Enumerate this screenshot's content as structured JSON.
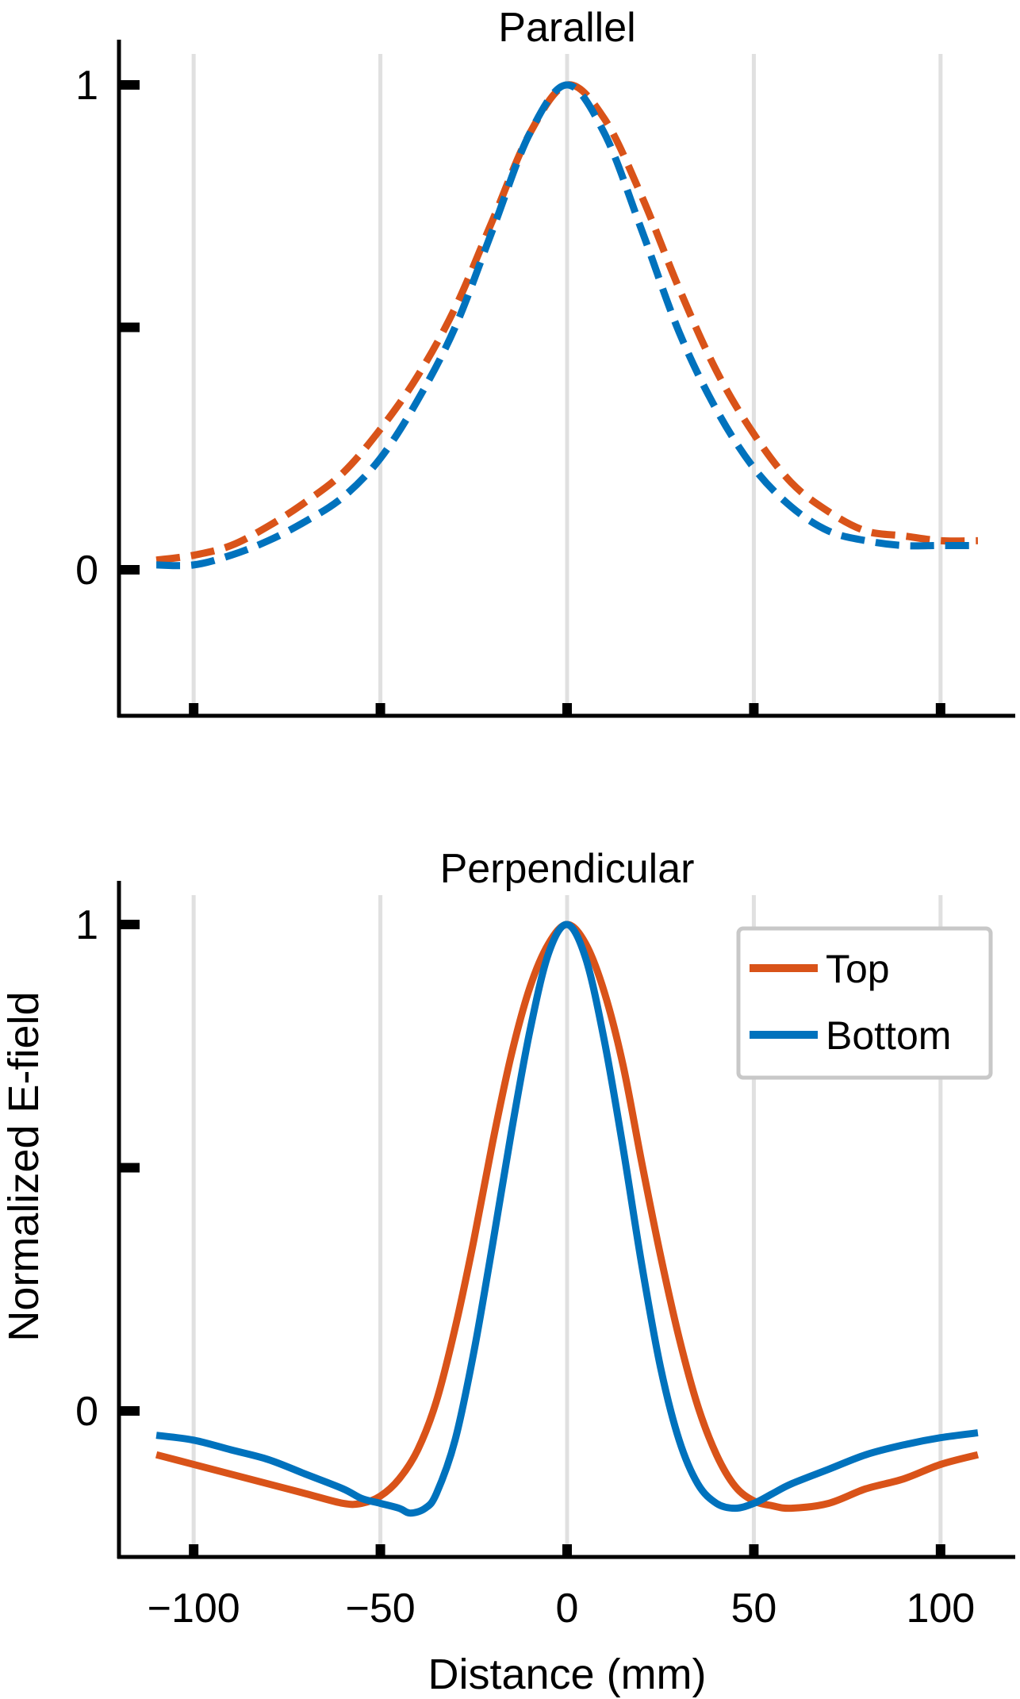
{
  "figure": {
    "ylabel": "Normalized E-field",
    "xlabel": "Distance (mm)",
    "colors": {
      "top": "#D95319",
      "bottom": "#0072BD",
      "grid": "#E0E0E0",
      "axis": "#000000"
    }
  },
  "chart_data": [
    {
      "type": "line",
      "title": "Parallel",
      "xlabel": "",
      "ylabel": "",
      "xlim": [
        -120,
        120
      ],
      "ylim": [
        -0.3,
        1.05
      ],
      "xticks": [
        -100,
        -50,
        0,
        50,
        100
      ],
      "yticks": [
        0,
        0.5,
        1
      ],
      "ytick_labels": [
        "0",
        "",
        "1"
      ],
      "grid": "vertical",
      "line_style": "dashed",
      "series": [
        {
          "name": "Top",
          "color": "#D95319",
          "x": [
            -110,
            -100,
            -90,
            -80,
            -70,
            -60,
            -50,
            -40,
            -30,
            -20,
            -10,
            0,
            10,
            20,
            30,
            40,
            50,
            60,
            70,
            80,
            90,
            100,
            110
          ],
          "y": [
            0.02,
            0.03,
            0.05,
            0.09,
            0.14,
            0.2,
            0.29,
            0.4,
            0.54,
            0.72,
            0.9,
            1.0,
            0.93,
            0.77,
            0.58,
            0.41,
            0.28,
            0.18,
            0.12,
            0.08,
            0.07,
            0.06,
            0.06
          ]
        },
        {
          "name": "Bottom",
          "color": "#0072BD",
          "x": [
            -110,
            -100,
            -90,
            -80,
            -70,
            -60,
            -50,
            -40,
            -30,
            -20,
            -10,
            0,
            10,
            20,
            30,
            40,
            50,
            60,
            70,
            80,
            90,
            100,
            110
          ],
          "y": [
            0.01,
            0.01,
            0.03,
            0.06,
            0.1,
            0.15,
            0.23,
            0.35,
            0.5,
            0.7,
            0.9,
            1.0,
            0.9,
            0.7,
            0.49,
            0.33,
            0.21,
            0.13,
            0.08,
            0.06,
            0.05,
            0.05,
            0.05
          ]
        }
      ]
    },
    {
      "type": "line",
      "title": "Perpendicular",
      "xlabel": "Distance (mm)",
      "ylabel": "",
      "xlim": [
        -120,
        120
      ],
      "ylim": [
        -0.3,
        1.05
      ],
      "xticks": [
        -100,
        -50,
        0,
        50,
        100
      ],
      "xtick_labels": [
        "−100",
        "−50",
        "0",
        "50",
        "100"
      ],
      "yticks": [
        0,
        0.5,
        1
      ],
      "ytick_labels": [
        "0",
        "",
        "1"
      ],
      "grid": "vertical",
      "line_style": "solid",
      "legend": {
        "position": "top-right",
        "entries": [
          "Top",
          "Bottom"
        ]
      },
      "series": [
        {
          "name": "Top",
          "color": "#D95319",
          "x": [
            -110,
            -100,
            -90,
            -80,
            -70,
            -60,
            -55,
            -50,
            -45,
            -40,
            -35,
            -30,
            -25,
            -20,
            -15,
            -10,
            -5,
            0,
            5,
            10,
            15,
            20,
            25,
            30,
            35,
            40,
            45,
            50,
            55,
            60,
            70,
            80,
            90,
            100,
            110
          ],
          "y": [
            -0.09,
            -0.11,
            -0.13,
            -0.15,
            -0.17,
            -0.19,
            -0.19,
            -0.175,
            -0.14,
            -0.08,
            0.02,
            0.17,
            0.35,
            0.55,
            0.73,
            0.87,
            0.96,
            1.0,
            0.96,
            0.86,
            0.71,
            0.51,
            0.32,
            0.15,
            0.01,
            -0.09,
            -0.155,
            -0.185,
            -0.195,
            -0.2,
            -0.19,
            -0.16,
            -0.14,
            -0.11,
            -0.09
          ]
        },
        {
          "name": "Bottom",
          "color": "#0072BD",
          "x": [
            -110,
            -100,
            -90,
            -80,
            -70,
            -60,
            -55,
            -50,
            -45,
            -42,
            -38,
            -35,
            -30,
            -25,
            -20,
            -15,
            -10,
            -5,
            0,
            5,
            10,
            15,
            20,
            25,
            30,
            35,
            40,
            45,
            50,
            55,
            60,
            70,
            80,
            90,
            100,
            110
          ],
          "y": [
            -0.05,
            -0.06,
            -0.08,
            -0.1,
            -0.13,
            -0.16,
            -0.18,
            -0.19,
            -0.2,
            -0.21,
            -0.2,
            -0.17,
            -0.06,
            0.12,
            0.34,
            0.57,
            0.78,
            0.94,
            1.0,
            0.93,
            0.76,
            0.54,
            0.3,
            0.09,
            -0.06,
            -0.15,
            -0.19,
            -0.2,
            -0.19,
            -0.17,
            -0.15,
            -0.12,
            -0.09,
            -0.07,
            -0.055,
            -0.045
          ]
        }
      ]
    }
  ]
}
